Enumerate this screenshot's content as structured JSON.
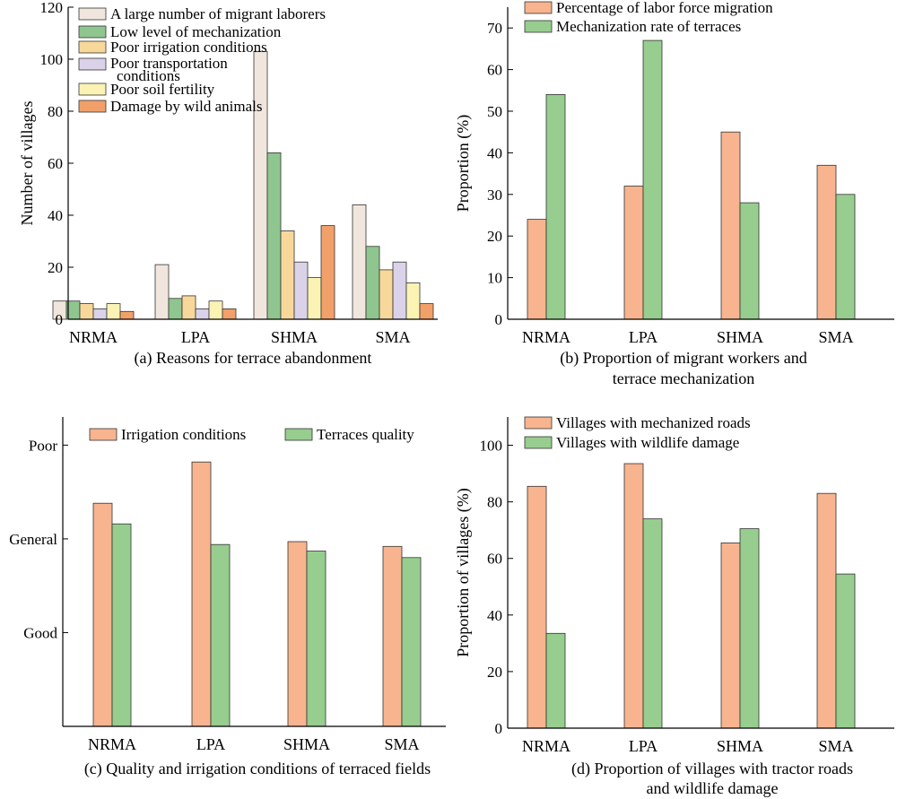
{
  "colors": {
    "migrant": "#f1e6dd",
    "mechanization": "#8fc58f",
    "irrigation": "#f8d89a",
    "transport": "#d9d2e8",
    "soil": "#fbf3b4",
    "wild": "#f2a069",
    "orange": "#f7b48f",
    "green": "#97cd8f"
  },
  "chart_data": [
    {
      "type": "bar",
      "caption": "(a) Reasons for terrace abandonment",
      "ylabel": "Number of villages",
      "ylim": [
        0,
        120
      ],
      "yticks": [
        "0",
        "20",
        "40",
        "60",
        "80",
        "100",
        "120"
      ],
      "categories": [
        "NRMA",
        "LPA",
        "SHMA",
        "SMA"
      ],
      "legend_position": "top-left",
      "series": [
        {
          "name": "A large number of migrant laborers",
          "values": [
            7,
            21,
            103,
            44
          ]
        },
        {
          "name": "Low level of mechanization",
          "values": [
            7,
            8,
            64,
            28
          ]
        },
        {
          "name": "Poor irrigation conditions",
          "values": [
            6,
            9,
            34,
            19
          ]
        },
        {
          "name": "Poor transportation conditions",
          "values": [
            4,
            4,
            22,
            22
          ]
        },
        {
          "name": "Poor soil fertility",
          "values": [
            6,
            7,
            16,
            14
          ]
        },
        {
          "name": "Damage by wild animals",
          "values": [
            3,
            4,
            36,
            6
          ]
        }
      ]
    },
    {
      "type": "bar",
      "caption": [
        "(b) Proportion of migrant workers and",
        "terrace mechanization"
      ],
      "ylabel": "Proportion (%)",
      "ylim": [
        0,
        75
      ],
      "yticks": [
        "0",
        "10",
        "20",
        "30",
        "40",
        "50",
        "60",
        "70"
      ],
      "categories": [
        "NRMA",
        "LPA",
        "SHMA",
        "SMA"
      ],
      "legend_position": "top-left",
      "series": [
        {
          "name": "Percentage of labor force migration",
          "values": [
            24,
            32,
            45,
            37
          ]
        },
        {
          "name": "Mechanization rate of terraces",
          "values": [
            54,
            67,
            28,
            30
          ]
        }
      ]
    },
    {
      "type": "bar",
      "caption": "(c) Quality and irrigation conditions of terraced fields",
      "ylabel": "",
      "ylim": [
        0,
        3.3
      ],
      "ytick_labels": [
        "Good",
        "General",
        "Poor"
      ],
      "ytick_values": [
        1,
        2,
        3
      ],
      "categories": [
        "NRMA",
        "LPA",
        "SHMA",
        "SMA"
      ],
      "legend_position": "top",
      "series": [
        {
          "name": "Irrigation conditions",
          "values": [
            2.38,
            2.82,
            1.97,
            1.92
          ]
        },
        {
          "name": "Terraces quality",
          "values": [
            2.16,
            1.94,
            1.87,
            1.8
          ]
        }
      ]
    },
    {
      "type": "bar",
      "caption": [
        "(d) Proportion of villages with tractor roads",
        "and wildlife damage"
      ],
      "ylabel": "Proportion of villages (%)",
      "ylim": [
        0,
        110
      ],
      "yticks": [
        "0",
        "20",
        "40",
        "60",
        "80",
        "100"
      ],
      "categories": [
        "NRMA",
        "LPA",
        "SHMA",
        "SMA"
      ],
      "legend_position": "top-left",
      "series": [
        {
          "name": "Villages with mechanized roads",
          "values": [
            85.5,
            93.5,
            65.5,
            83
          ]
        },
        {
          "name": "Villages with wildlife damage",
          "values": [
            33.5,
            74,
            70.5,
            54.5
          ]
        }
      ]
    }
  ]
}
